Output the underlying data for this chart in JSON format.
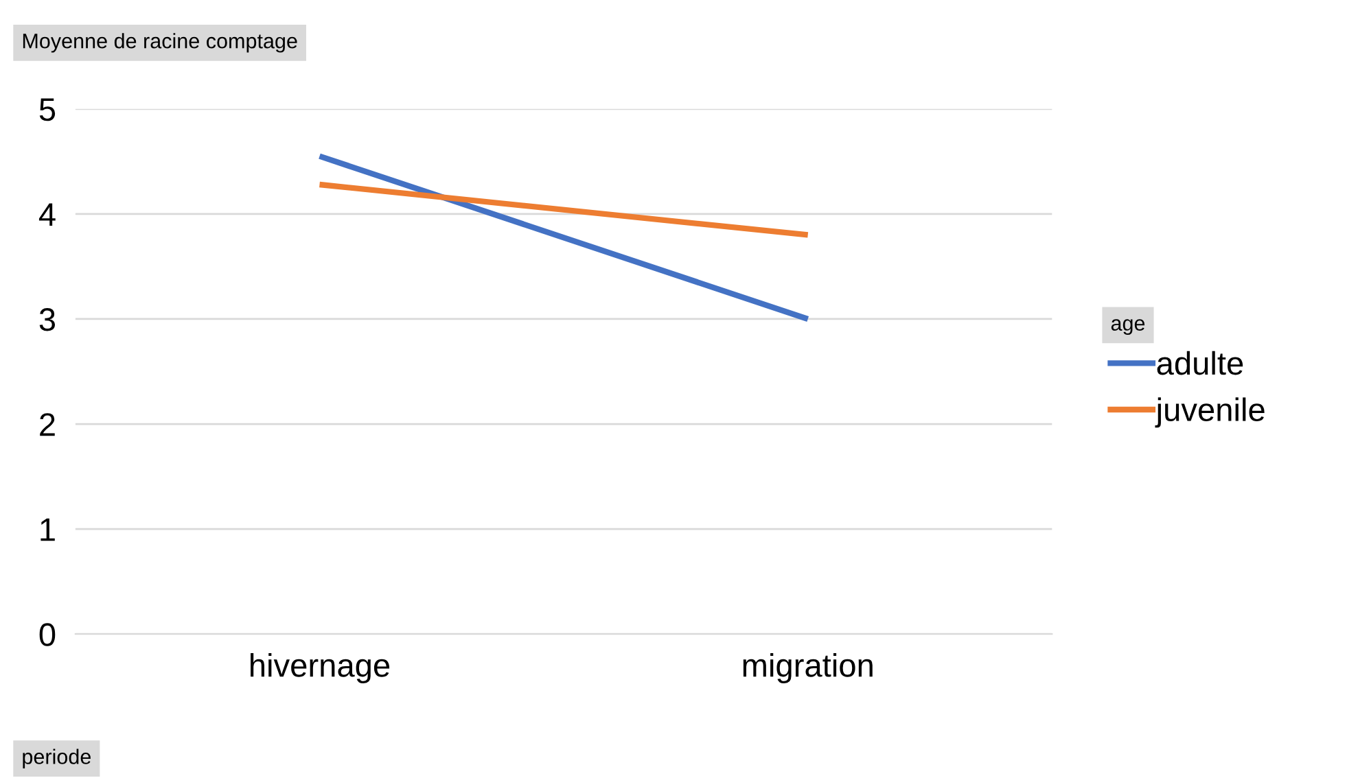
{
  "chart_data": {
    "type": "line",
    "ylabel": "Moyenne de racine comptage",
    "xlabel": "periode",
    "legend_title": "age",
    "categories": [
      "hivernage",
      "migration"
    ],
    "series": [
      {
        "name": "adulte",
        "color": "#4472c4",
        "values": [
          4.55,
          3.0
        ]
      },
      {
        "name": "juvenile",
        "color": "#ed7d31",
        "values": [
          4.28,
          3.8
        ]
      }
    ],
    "ylim": [
      0,
      5
    ],
    "yticks": [
      0,
      1,
      2,
      3,
      4,
      5
    ],
    "grid": "y",
    "legend": "right",
    "marker": "none",
    "line_style": "solid"
  }
}
